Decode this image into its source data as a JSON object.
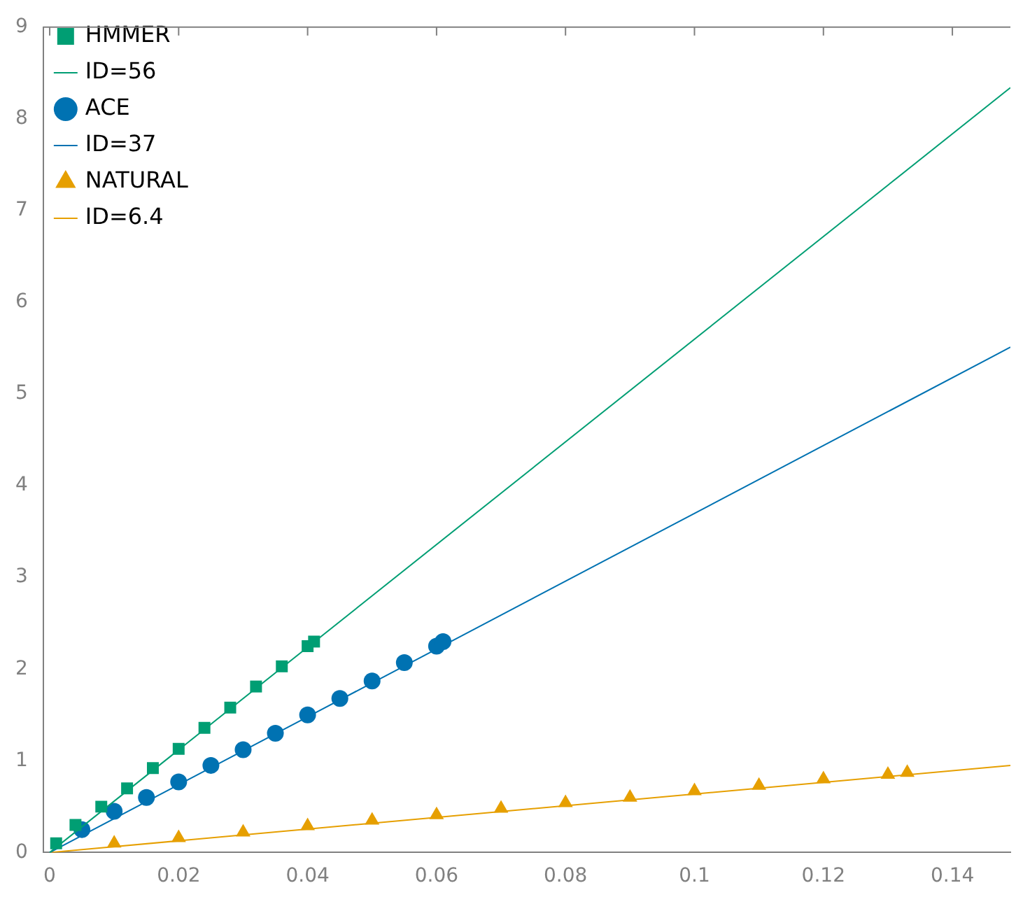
{
  "chart_data": {
    "type": "scatter",
    "xlim": [
      -0.001,
      0.149
    ],
    "ylim": [
      0,
      9
    ],
    "xticks": [
      0,
      0.02,
      0.04,
      0.06,
      0.08,
      0.1,
      0.12,
      0.14
    ],
    "yticks": [
      0,
      1,
      2,
      3,
      4,
      5,
      6,
      7,
      8,
      9
    ],
    "grid": false,
    "legend": "top left",
    "series": [
      {
        "name": "HMMER",
        "marker": "square",
        "color": "#009e73",
        "x": [
          0.001,
          0.004,
          0.008,
          0.012,
          0.016,
          0.02,
          0.024,
          0.028,
          0.032,
          0.036,
          0.04,
          0.041
        ],
        "values": [
          0.1,
          0.3,
          0.5,
          0.7,
          0.92,
          1.13,
          1.36,
          1.58,
          1.81,
          2.03,
          2.25,
          2.3
        ]
      },
      {
        "name": "ID=56",
        "type": "line",
        "marker": "none",
        "color": "#009e73",
        "x": [
          0,
          0.149
        ],
        "values": [
          0,
          8.34
        ]
      },
      {
        "name": "ACE",
        "marker": "circle",
        "color": "#0072b2",
        "x": [
          0.005,
          0.01,
          0.015,
          0.02,
          0.025,
          0.03,
          0.035,
          0.04,
          0.045,
          0.05,
          0.055,
          0.06,
          0.061
        ],
        "values": [
          0.25,
          0.45,
          0.6,
          0.77,
          0.95,
          1.12,
          1.3,
          1.5,
          1.68,
          1.87,
          2.07,
          2.25,
          2.3
        ]
      },
      {
        "name": "ID=37",
        "type": "line",
        "marker": "none",
        "color": "#0072b2",
        "x": [
          0,
          0.149
        ],
        "values": [
          0,
          5.51
        ]
      },
      {
        "name": "NATURAL",
        "marker": "triangle",
        "color": "#e69f00",
        "x": [
          0.01,
          0.02,
          0.03,
          0.04,
          0.05,
          0.06,
          0.07,
          0.08,
          0.09,
          0.1,
          0.11,
          0.12,
          0.13,
          0.133
        ],
        "values": [
          0.1,
          0.16,
          0.22,
          0.29,
          0.35,
          0.41,
          0.48,
          0.54,
          0.6,
          0.67,
          0.73,
          0.8,
          0.85,
          0.87
        ]
      },
      {
        "name": "ID=6.4",
        "type": "line",
        "marker": "none",
        "color": "#e69f00",
        "x": [
          0,
          0.149
        ],
        "values": [
          0,
          0.95
        ]
      }
    ]
  }
}
